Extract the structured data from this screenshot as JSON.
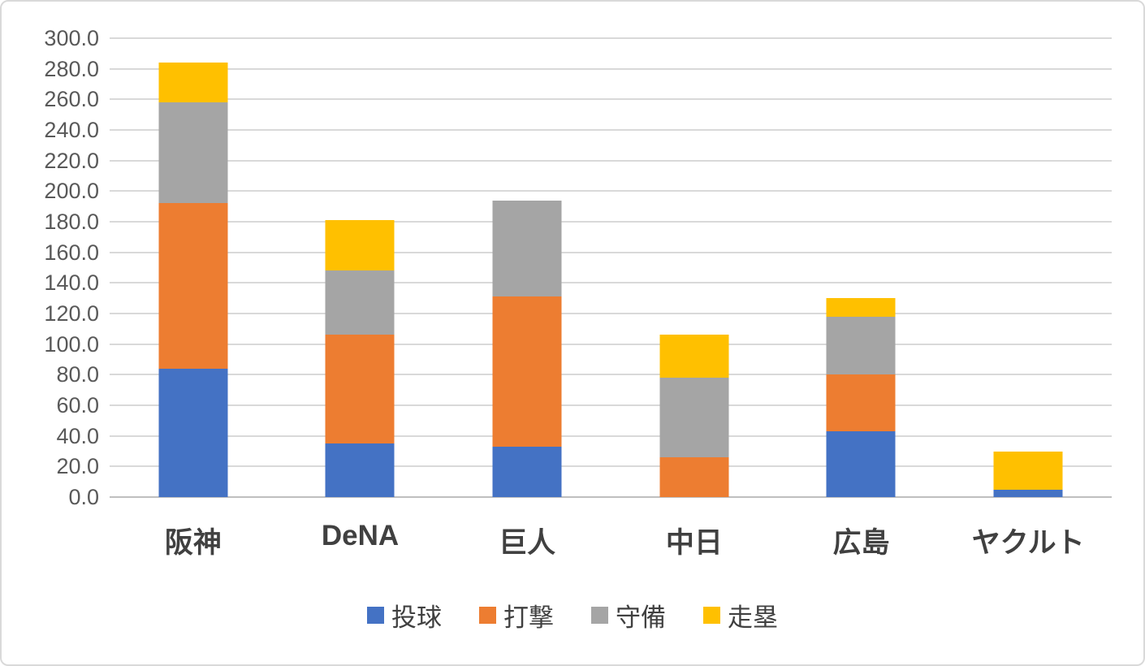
{
  "chart_data": {
    "type": "bar",
    "stacked": true,
    "title": "",
    "xlabel": "",
    "ylabel": "",
    "categories": [
      "阪神",
      "DeNA",
      "巨人",
      "中日",
      "広島",
      "ヤクルト"
    ],
    "series": [
      {
        "name": "投球",
        "color": "#4472C4",
        "values": [
          84,
          35,
          33,
          0,
          43,
          5
        ]
      },
      {
        "name": "打撃",
        "color": "#ED7D31",
        "values": [
          108,
          71,
          98,
          26,
          37,
          0
        ]
      },
      {
        "name": "守備",
        "color": "#A5A5A5",
        "values": [
          66,
          42,
          63,
          52,
          38,
          0
        ]
      },
      {
        "name": "走塁",
        "color": "#FFC000",
        "values": [
          26,
          33,
          0,
          28,
          12,
          25
        ]
      }
    ],
    "stack_totals": [
      284,
      181,
      194,
      106,
      130,
      30
    ],
    "ylim": [
      0,
      300
    ],
    "ytick_step": 20,
    "ytick_labels": [
      "300.0",
      "280.0",
      "260.0",
      "240.0",
      "220.0",
      "200.0",
      "180.0",
      "160.0",
      "140.0",
      "120.0",
      "100.0",
      "80.0",
      "60.0",
      "40.0",
      "20.0",
      "0.0"
    ],
    "grid": "horizontal",
    "legend_position": "bottom"
  },
  "style_colors": {
    "gridline": "#d9d9d9",
    "axis_line": "#bfbfbf",
    "y_tick_text": "#595959",
    "x_tick_text": "#404040",
    "legend_text": "#404040",
    "frame_border": "#d9d9d9",
    "background": "#ffffff"
  }
}
